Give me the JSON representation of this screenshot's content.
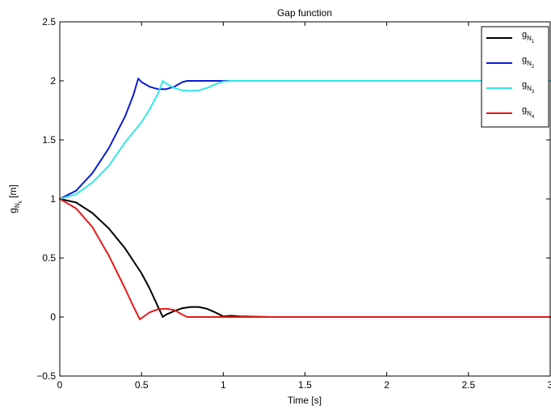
{
  "chart_data": {
    "type": "line",
    "title": "Gap function",
    "xlabel": "Time [s]",
    "ylabel": {
      "base": "g",
      "sub1": "N",
      "sub2": "k",
      "unit": " [m]"
    },
    "xlim": [
      0,
      3
    ],
    "ylim": [
      -0.5,
      2.5
    ],
    "xticks": [
      0,
      0.5,
      1,
      1.5,
      2,
      2.5,
      3
    ],
    "yticks": [
      -0.5,
      0,
      0.5,
      1,
      1.5,
      2,
      2.5
    ],
    "xtick_labels": [
      "0",
      "0.5",
      "1",
      "1.5",
      "2",
      "2.5",
      "3"
    ],
    "ytick_labels": [
      "−0.5",
      "0",
      "0.5",
      "1",
      "1.5",
      "2",
      "2.5"
    ],
    "grid": false,
    "legend_position": "top-right",
    "series": [
      {
        "name": {
          "base": "g",
          "sub1": "N",
          "sub2": "1"
        },
        "color": "#000000",
        "x": [
          0,
          0.1,
          0.2,
          0.3,
          0.4,
          0.5,
          0.55,
          0.6,
          0.63,
          0.65,
          0.7,
          0.75,
          0.8,
          0.85,
          0.9,
          0.95,
          1.0,
          1.05,
          1.1,
          1.3,
          1.6,
          2.0,
          2.5,
          3.0
        ],
        "y": [
          1.0,
          0.97,
          0.88,
          0.75,
          0.58,
          0.37,
          0.24,
          0.09,
          0.0,
          0.02,
          0.05,
          0.075,
          0.085,
          0.085,
          0.07,
          0.04,
          0.005,
          0.01,
          0.005,
          0.0,
          0.0,
          0.0,
          0.0,
          0.0
        ]
      },
      {
        "name": {
          "base": "g",
          "sub1": "N",
          "sub2": "2"
        },
        "color": "#0a1bd6",
        "x": [
          0,
          0.1,
          0.2,
          0.3,
          0.4,
          0.45,
          0.48,
          0.5,
          0.55,
          0.6,
          0.65,
          0.7,
          0.75,
          0.78,
          0.8,
          0.9,
          1.0,
          1.5,
          2.0,
          2.5,
          3.0
        ],
        "y": [
          1.0,
          1.07,
          1.22,
          1.43,
          1.7,
          1.88,
          2.02,
          1.99,
          1.95,
          1.93,
          1.93,
          1.95,
          1.99,
          2.0,
          2.0,
          2.0,
          2.0,
          2.0,
          2.0,
          2.0,
          2.0
        ]
      },
      {
        "name": {
          "base": "g",
          "sub1": "N",
          "sub2": "3"
        },
        "color": "#33e6e6",
        "x": [
          0,
          0.1,
          0.2,
          0.3,
          0.4,
          0.5,
          0.55,
          0.6,
          0.63,
          0.66,
          0.7,
          0.75,
          0.8,
          0.85,
          0.9,
          0.95,
          1.0,
          1.05,
          1.2,
          1.5,
          2.0,
          2.5,
          3.0
        ],
        "y": [
          1.0,
          1.04,
          1.14,
          1.28,
          1.48,
          1.65,
          1.76,
          1.89,
          2.0,
          1.97,
          1.94,
          1.92,
          1.915,
          1.92,
          1.94,
          1.97,
          1.995,
          2.0,
          2.0,
          2.0,
          2.0,
          2.0,
          2.0
        ]
      },
      {
        "name": {
          "base": "g",
          "sub1": "N",
          "sub2": "4"
        },
        "color": "#e61919",
        "x": [
          0,
          0.1,
          0.2,
          0.3,
          0.4,
          0.45,
          0.49,
          0.52,
          0.55,
          0.6,
          0.65,
          0.7,
          0.75,
          0.78,
          0.8,
          1.0,
          1.5,
          2.0,
          2.5,
          3.0
        ],
        "y": [
          1.0,
          0.92,
          0.76,
          0.52,
          0.24,
          0.09,
          -0.02,
          0.01,
          0.04,
          0.065,
          0.07,
          0.06,
          0.02,
          0.0,
          0.0,
          0.0,
          0.0,
          0.0,
          0.0,
          0.0
        ]
      }
    ]
  }
}
